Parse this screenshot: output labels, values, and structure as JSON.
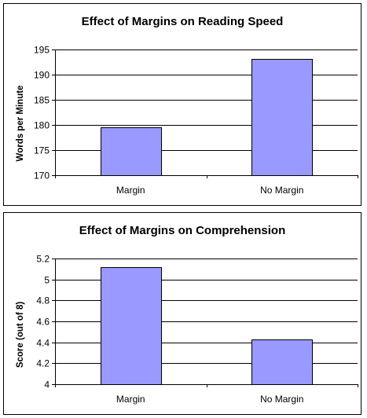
{
  "chart_data": [
    {
      "type": "bar",
      "title": "Effect of Margins on Reading Speed",
      "xlabel": "",
      "ylabel": "Words per Minute",
      "categories": [
        "Margin",
        "No Margin"
      ],
      "values": [
        179.5,
        193.2
      ],
      "ylim": [
        170,
        195
      ],
      "yticks": [
        "170",
        "175",
        "180",
        "185",
        "190",
        "195"
      ],
      "ytick_values": [
        170,
        175,
        180,
        185,
        190,
        195
      ],
      "grid": true,
      "legend": "none",
      "bar_color": "#9999ff"
    },
    {
      "type": "bar",
      "title": "Effect of Margins on Comprehension",
      "xlabel": "",
      "ylabel": "Score (out of 8)",
      "categories": [
        "Margin",
        "No Margin"
      ],
      "values": [
        5.12,
        4.43
      ],
      "ylim": [
        4,
        5.2
      ],
      "yticks": [
        "4",
        "4.2",
        "4.4",
        "4.6",
        "4.8",
        "5",
        "5.2"
      ],
      "ytick_values": [
        4,
        4.2,
        4.4,
        4.6,
        4.8,
        5,
        5.2
      ],
      "grid": true,
      "legend": "none",
      "bar_color": "#9999ff"
    }
  ]
}
